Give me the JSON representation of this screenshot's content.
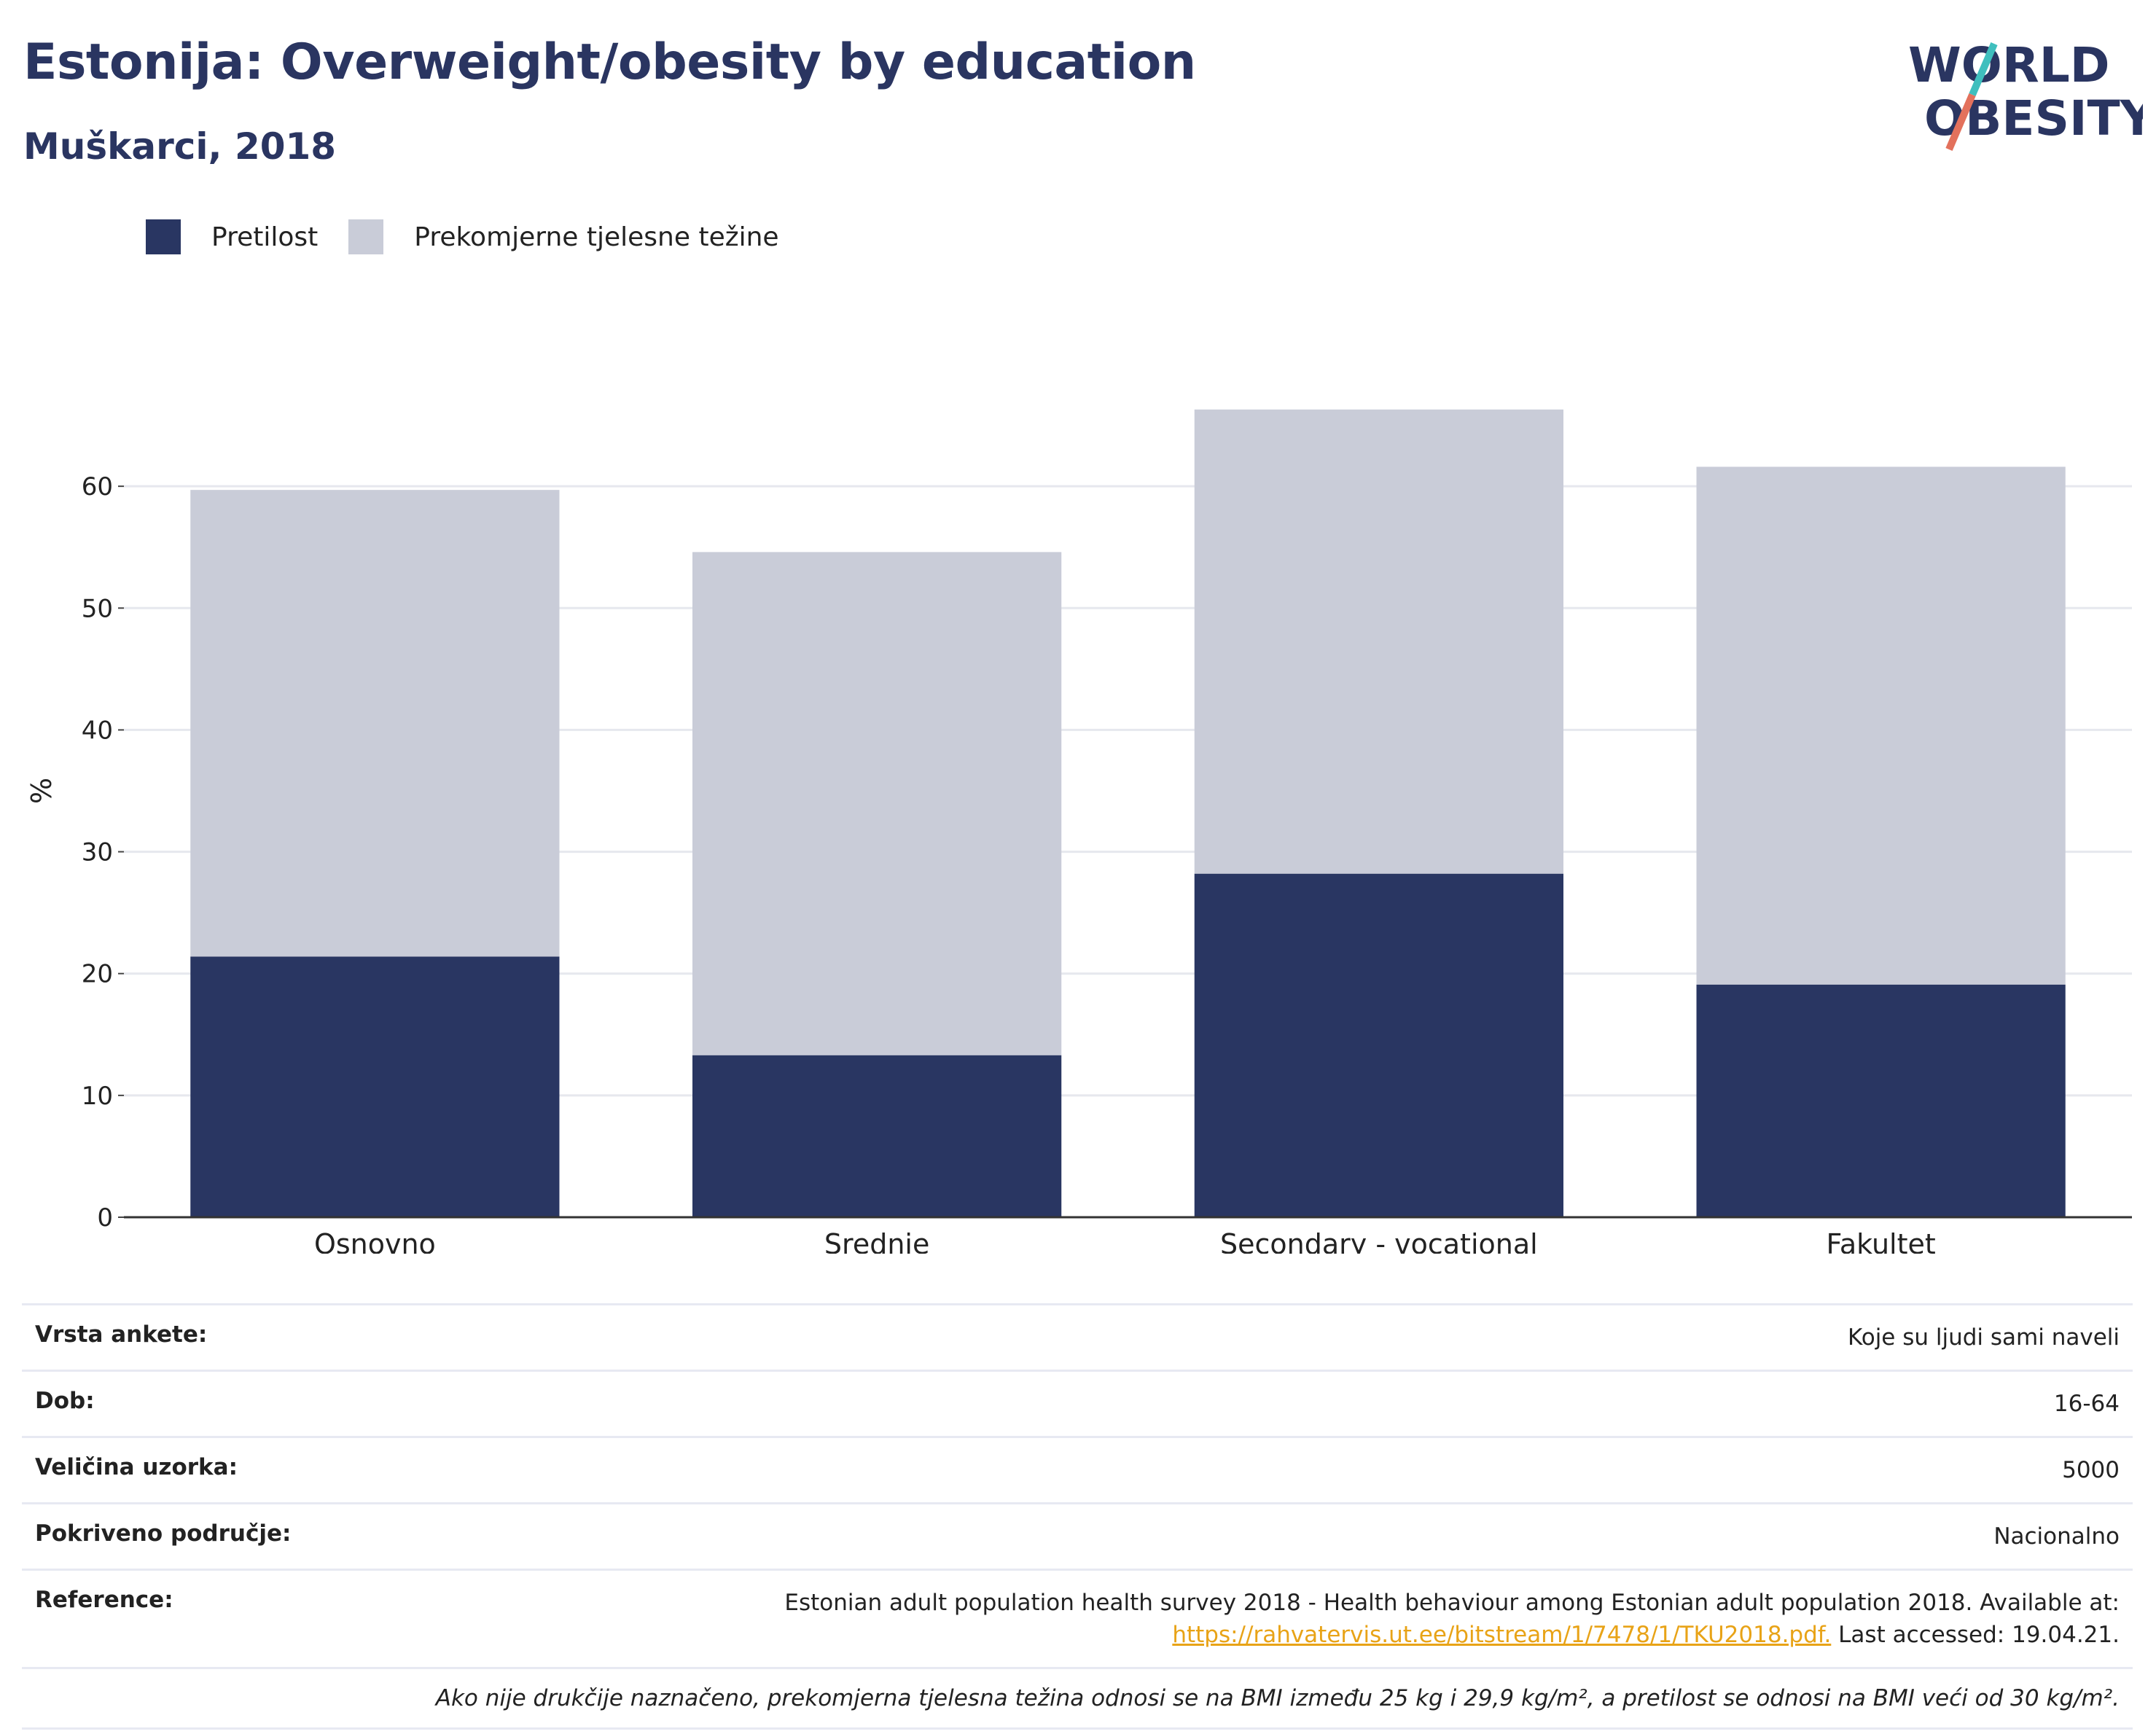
{
  "header": {
    "title": "Estonija: Overweight/obesity by education",
    "subtitle": "Muškarci, 2018"
  },
  "logo": {
    "line1": "WORLD",
    "line2": "OBESITY",
    "slash_top": "#3fbfbe",
    "slash_bottom": "#e3715c",
    "text_color": "#2a3561"
  },
  "legend": [
    {
      "label": "Pretilost",
      "color": "#293662"
    },
    {
      "label": "Prekomjerne tjelesne težine",
      "color": "#c9ccd8"
    }
  ],
  "chart_data": {
    "type": "bar",
    "stacked": true,
    "categories": [
      "Osnovno",
      "Srednje",
      "Secondary - vocational",
      "Fakultet"
    ],
    "series": [
      {
        "name": "Pretilost",
        "color": "#293662",
        "values": [
          21.4,
          13.3,
          28.2,
          19.1
        ]
      },
      {
        "name": "Prekomjerne tjelesne težine",
        "color": "#c9ccd8",
        "values": [
          38.3,
          41.3,
          38.1,
          42.5
        ]
      }
    ],
    "ylabel": "%",
    "ylim": [
      0,
      70
    ],
    "yticks": [
      0,
      10,
      20,
      30,
      40,
      50,
      60
    ],
    "grid": true,
    "legend_position": "top-left"
  },
  "info": {
    "rows": [
      {
        "key": "Vrsta ankete:",
        "value": "Koje su ljudi sami naveli"
      },
      {
        "key": "Dob:",
        "value": "16-64"
      },
      {
        "key": "Veličina uzorka:",
        "value": "5000"
      },
      {
        "key": "Pokriveno područje:",
        "value": "Nacionalno"
      }
    ],
    "reference": {
      "key": "Reference:",
      "text_before": "Estonian adult population health survey 2018 - Health behaviour among Estonian adult population 2018. Available at:",
      "link": "https://rahvatervis.ut.ee/bitstream/1/7478/1/TKU2018.pdf.",
      "text_after": " Last accessed: 19.04.21."
    },
    "note": "Ako nije drukčije naznačeno, prekomjerna tjelesna težina odnosi se na BMI između 25 kg i 29,9 kg/m², a pretilost se odnosi na BMI veći od 30 kg/m²."
  }
}
